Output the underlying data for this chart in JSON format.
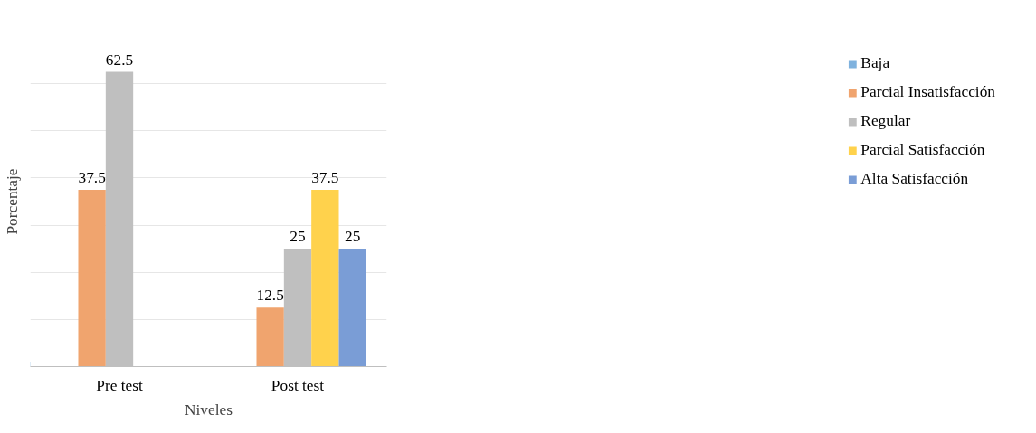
{
  "chart_data": {
    "type": "bar",
    "xlabel": "Niveles",
    "ylabel": "Porcentaje",
    "categories": [
      "Pre test",
      "Post test"
    ],
    "series": [
      {
        "name": "Baja",
        "color": "#7fb2de",
        "values": [
          null,
          null
        ]
      },
      {
        "name": "Parcial Insatisfacción",
        "color": "#f0a46e",
        "values": [
          37.5,
          12.5
        ]
      },
      {
        "name": "Regular",
        "color": "#bfbfbf",
        "values": [
          62.5,
          25
        ]
      },
      {
        "name": "Parcial Satisfacción",
        "color": "#ffd24c",
        "values": [
          null,
          37.5
        ]
      },
      {
        "name": "Alta Satisfacción",
        "color": "#7a9dd6",
        "values": [
          null,
          25
        ]
      }
    ],
    "tick_labels": "x",
    "grid": "y",
    "legend": "right",
    "data_labels": true
  }
}
